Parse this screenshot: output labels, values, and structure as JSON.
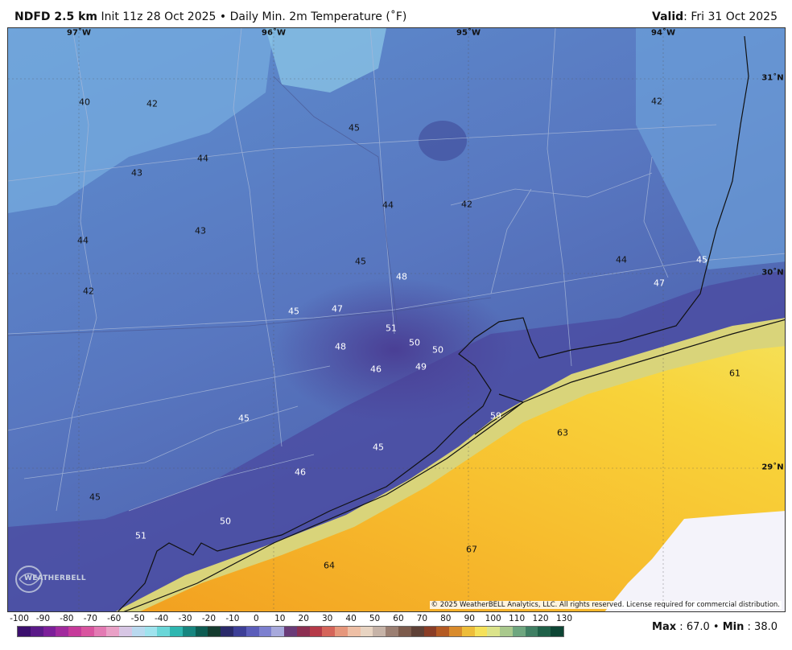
{
  "header": {
    "model": "NDFD 2.5 km",
    "init": "Init 11z 28 Oct 2025",
    "bullet": "•",
    "product": "Daily Min. 2m Temperature (˚F)",
    "valid_label": "Valid",
    "valid_sep": ":",
    "valid_date": "Fri 31 Oct 2025"
  },
  "coords": {
    "lon": [
      "97˚W",
      "96˚W",
      "95˚W",
      "94˚W"
    ],
    "lat": [
      "31˚N",
      "30˚N",
      "29˚N"
    ]
  },
  "station_values": [
    "40",
    "42",
    "45",
    "44",
    "43",
    "42",
    "44",
    "43",
    "44",
    "42",
    "42",
    "44",
    "45",
    "45",
    "48",
    "47",
    "45",
    "47",
    "51",
    "50",
    "50",
    "48",
    "46",
    "49",
    "45",
    "59",
    "45",
    "63",
    "61",
    "46",
    "45",
    "50",
    "51",
    "67",
    "64"
  ],
  "logo_text": "WEATHERBELL",
  "copyright": "© 2025 WeatherBELL Analytics, LLC. All rights reserved. License required for commercial distribution.",
  "legend": {
    "ticks": [
      "-100",
      "-90",
      "-80",
      "-70",
      "-60",
      "-50",
      "-40",
      "-30",
      "-20",
      "-10",
      "0",
      "10",
      "20",
      "30",
      "40",
      "50",
      "60",
      "70",
      "80",
      "90",
      "100",
      "110",
      "120",
      "130"
    ],
    "colors": [
      "#3b0f6e",
      "#5a1a88",
      "#7c1f99",
      "#a12a9d",
      "#c63a9a",
      "#d9549f",
      "#e37ab3",
      "#e9a0c6",
      "#d7c6e4",
      "#b9d9ef",
      "#9fe3ee",
      "#6ad6d8",
      "#2fb6b0",
      "#17857f",
      "#0d5c52",
      "#143b2f",
      "#2a2a6a",
      "#3d3f97",
      "#5b5dba",
      "#7d80cf",
      "#a7a9dc",
      "#6a3b78",
      "#8c2f52",
      "#b53a48",
      "#d5655a",
      "#e6977c",
      "#eebfa5",
      "#e8d4c2",
      "#c6b3a7",
      "#9b7f72",
      "#7c5b4c",
      "#5e4036",
      "#8a3d26",
      "#b45a23",
      "#d98b2c",
      "#eebd3a",
      "#f5e15a",
      "#dbe38a",
      "#a9c98d",
      "#6ea67f",
      "#3f7f63",
      "#1f6048",
      "#0d4534"
    ]
  },
  "stats": {
    "max_label": "Max",
    "max_value": "67.0",
    "bullet": "•",
    "min_label": "Min",
    "min_value": "38.0"
  }
}
